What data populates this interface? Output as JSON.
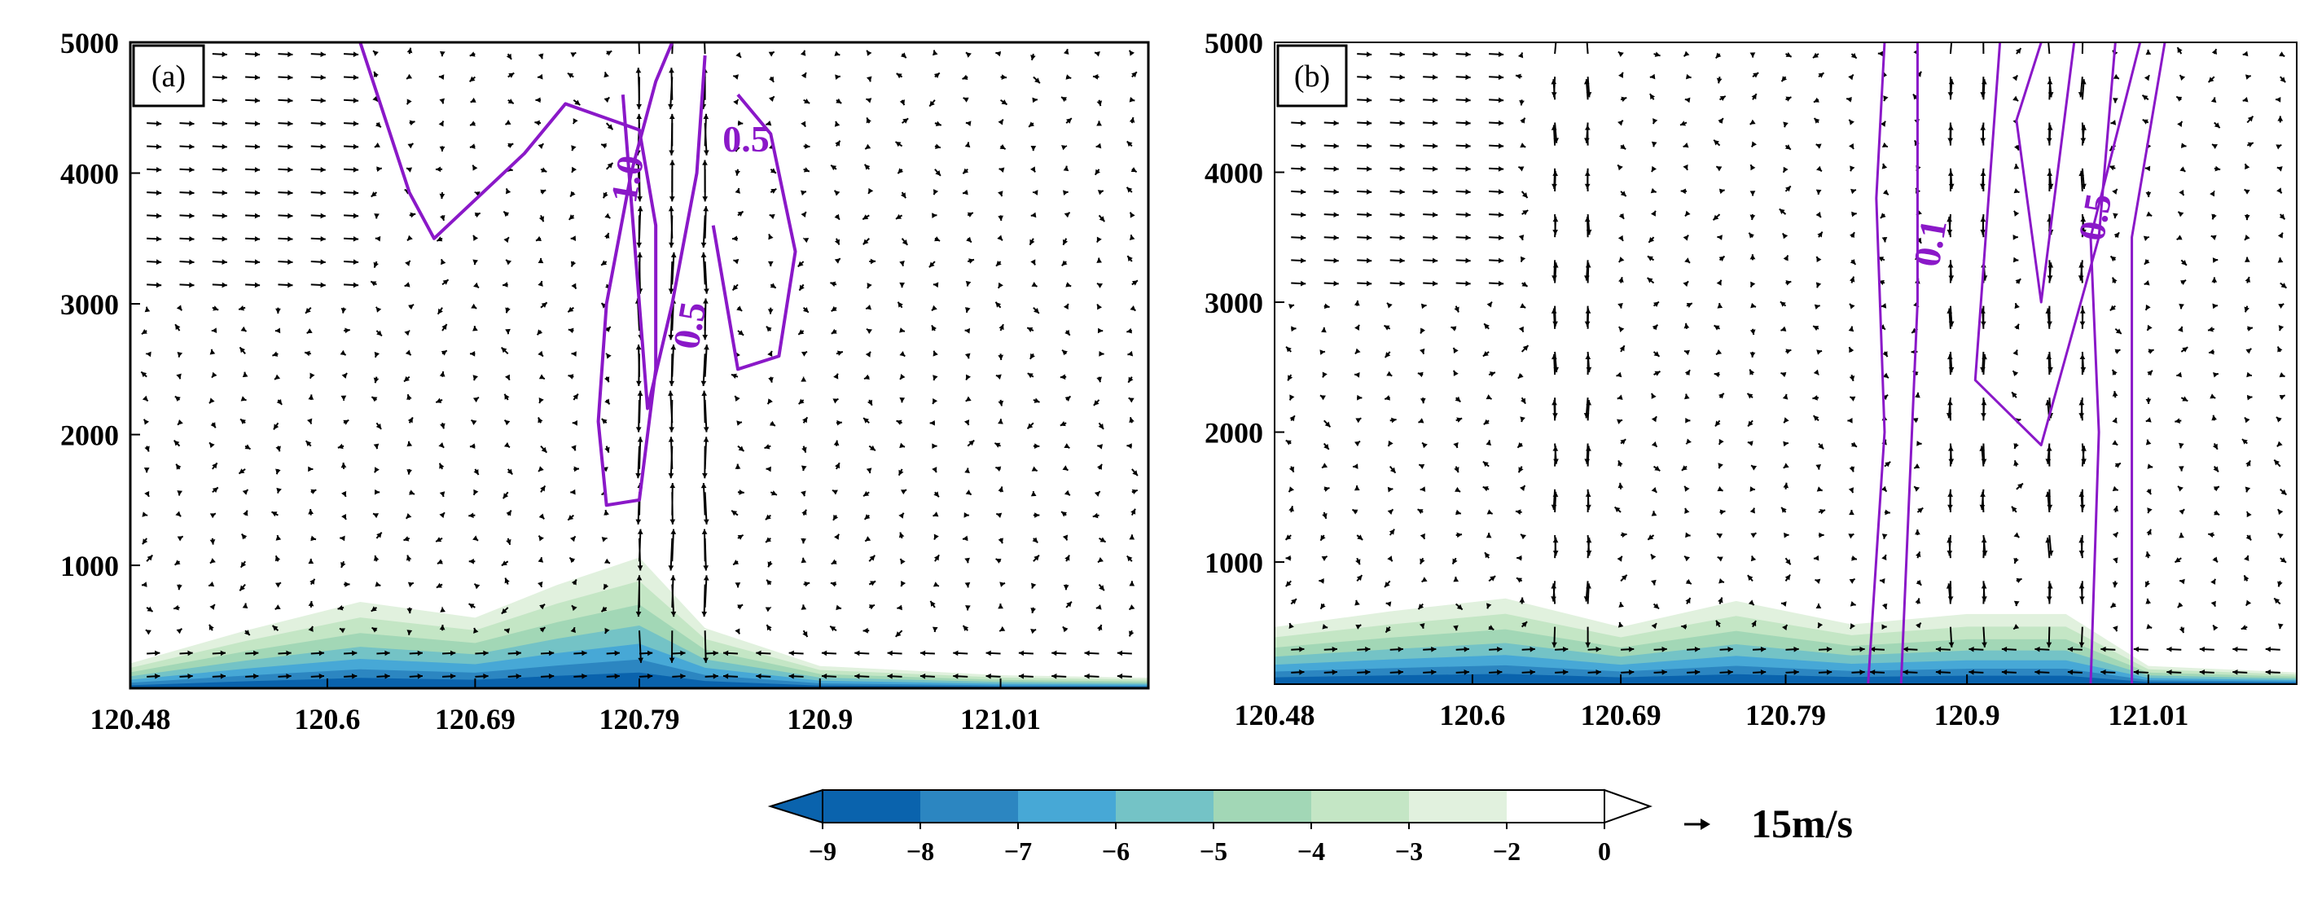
{
  "chart_data": [
    {
      "type": "contour_vector",
      "panel_label": "(a)",
      "x_ticks": [
        "120.48",
        "120.6",
        "120.69",
        "120.79",
        "120.9",
        "121.01"
      ],
      "x_tick_values": [
        120.48,
        120.6,
        120.69,
        120.79,
        120.9,
        121.01
      ],
      "xlim": [
        120.48,
        121.1
      ],
      "y_ticks": [
        "1000",
        "2000",
        "3000",
        "4000",
        "5000"
      ],
      "y_tick_values": [
        1000,
        2000,
        3000,
        4000,
        5000
      ],
      "ylim": [
        60,
        5000
      ],
      "contour_labels": [
        {
          "text": "1.0",
          "x": 120.785,
          "y": 3950,
          "rotation": -80
        },
        {
          "text": "0.5",
          "x": 120.855,
          "y": 4230,
          "rotation": 0
        },
        {
          "text": "0.5",
          "x": 120.823,
          "y": 2830,
          "rotation": -80
        }
      ],
      "contour_lines": [
        [
          [
            120.62,
            5000
          ],
          [
            120.65,
            3850
          ],
          [
            120.665,
            3500
          ],
          [
            120.72,
            4150
          ],
          [
            120.745,
            4530
          ],
          [
            120.79,
            4330
          ],
          [
            120.8,
            3600
          ],
          [
            120.8,
            2500
          ],
          [
            120.79,
            1500
          ],
          [
            120.77,
            1460
          ],
          [
            120.765,
            2100
          ],
          [
            120.77,
            3000
          ],
          [
            120.785,
            4000
          ],
          [
            120.8,
            4700
          ],
          [
            120.81,
            5000
          ]
        ],
        [
          [
            120.78,
            4600
          ],
          [
            120.795,
            2200
          ],
          [
            120.81,
            3000
          ],
          [
            120.825,
            4000
          ],
          [
            120.83,
            4900
          ]
        ],
        [
          [
            120.835,
            3600
          ],
          [
            120.85,
            2500
          ],
          [
            120.875,
            2600
          ],
          [
            120.885,
            3400
          ],
          [
            120.87,
            4300
          ],
          [
            120.85,
            4600
          ]
        ]
      ],
      "shading_profile": [
        {
          "x": 120.48,
          "top": 250
        },
        {
          "x": 120.55,
          "top": 500
        },
        {
          "x": 120.62,
          "top": 720
        },
        {
          "x": 120.69,
          "top": 600
        },
        {
          "x": 120.74,
          "top": 850
        },
        {
          "x": 120.79,
          "top": 1060
        },
        {
          "x": 120.83,
          "top": 520
        },
        {
          "x": 120.9,
          "top": 230
        },
        {
          "x": 121.01,
          "top": 160
        },
        {
          "x": 121.1,
          "top": 140
        }
      ]
    },
    {
      "type": "contour_vector",
      "panel_label": "(b)",
      "x_ticks": [
        "120.48",
        "120.6",
        "120.69",
        "120.79",
        "120.9",
        "121.01"
      ],
      "x_tick_values": [
        120.48,
        120.6,
        120.69,
        120.79,
        120.9,
        121.01
      ],
      "xlim": [
        120.48,
        121.1
      ],
      "y_ticks": [
        "1000",
        "2000",
        "3000",
        "4000",
        "5000"
      ],
      "y_tick_values": [
        1000,
        2000,
        3000,
        4000,
        5000
      ],
      "ylim": [
        60,
        5000
      ],
      "contour_labels": [
        {
          "text": "0.1",
          "x": 120.88,
          "y": 3450,
          "rotation": -80
        },
        {
          "text": "0.5",
          "x": 120.98,
          "y": 3650,
          "rotation": -80
        }
      ],
      "contour_lines": [
        [
          [
            120.85,
            5000
          ],
          [
            120.845,
            3800
          ],
          [
            120.85,
            2000
          ],
          [
            120.84,
            60
          ]
        ],
        [
          [
            120.87,
            5000
          ],
          [
            120.87,
            3000
          ],
          [
            120.86,
            60
          ]
        ],
        [
          [
            120.945,
            5000
          ],
          [
            120.93,
            4400
          ],
          [
            120.945,
            3000
          ],
          [
            120.955,
            4000
          ],
          [
            120.965,
            5000
          ]
        ],
        [
          [
            120.92,
            5000
          ],
          [
            120.905,
            2400
          ],
          [
            120.945,
            1900
          ],
          [
            120.98,
            3500
          ],
          [
            120.99,
            5000
          ]
        ],
        [
          [
            121.005,
            5000
          ],
          [
            120.975,
            3500
          ],
          [
            120.98,
            2000
          ],
          [
            120.975,
            60
          ]
        ],
        [
          [
            121.02,
            5000
          ],
          [
            121.0,
            3500
          ],
          [
            121.0,
            60
          ]
        ]
      ],
      "shading_profile": [
        {
          "x": 120.48,
          "top": 500
        },
        {
          "x": 120.55,
          "top": 620
        },
        {
          "x": 120.62,
          "top": 720
        },
        {
          "x": 120.69,
          "top": 500
        },
        {
          "x": 120.76,
          "top": 700
        },
        {
          "x": 120.83,
          "top": 520
        },
        {
          "x": 120.9,
          "top": 600
        },
        {
          "x": 120.96,
          "top": 600
        },
        {
          "x": 121.01,
          "top": 200
        },
        {
          "x": 121.1,
          "top": 150
        }
      ]
    }
  ],
  "colorbar": {
    "ticks": [
      "−9",
      "−8",
      "−7",
      "−6",
      "−5",
      "−4",
      "−3",
      "−2",
      "0"
    ],
    "colors": [
      "#0a63ad",
      "#2c86c1",
      "#47a8d6",
      "#74c3c6",
      "#a2d7b6",
      "#c4e6c5",
      "#e1f1de",
      "#ffffff"
    ],
    "extend": "both"
  },
  "reference_vector": {
    "label": "15m/s"
  },
  "colors": {
    "contour": "#8a18c8",
    "arrow": "#000000"
  }
}
